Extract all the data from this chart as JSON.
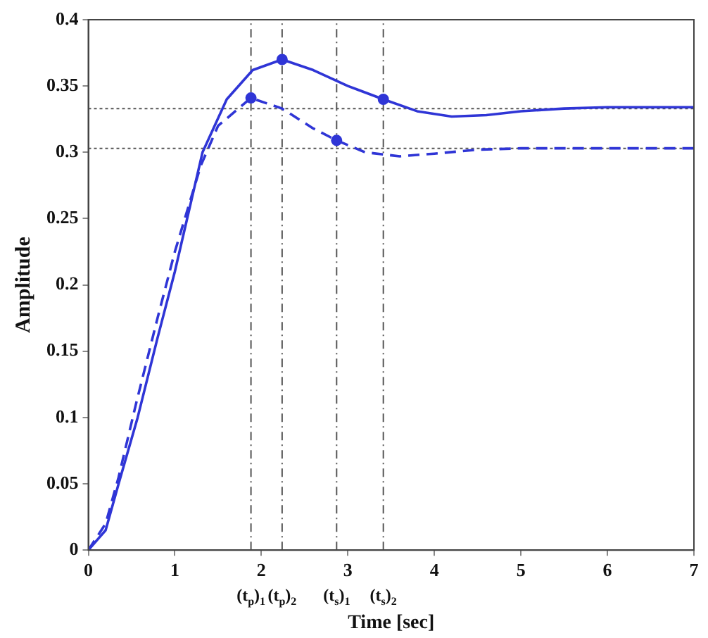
{
  "chart_data": {
    "type": "line",
    "xlabel": "Time [sec]",
    "ylabel": "Amplitude",
    "xlim": [
      0,
      7
    ],
    "xticks": [
      0,
      1,
      2,
      3,
      4,
      5,
      6,
      7
    ],
    "ylim": [
      0,
      0.4
    ],
    "yticks": [
      0,
      0.05,
      0.1,
      0.15,
      0.2,
      0.25,
      0.3,
      0.35,
      0.4
    ],
    "grid": false,
    "legend": false,
    "series": [
      {
        "color": "#2f35d6",
        "line_style": "solid",
        "marker": "none",
        "x": [
          0,
          0.2,
          0.35,
          0.57,
          0.8,
          1,
          1.32,
          1.6,
          1.9,
          2.24,
          2.6,
          3,
          3.41,
          3.8,
          4.2,
          4.6,
          5,
          5.5,
          6,
          7
        ],
        "values": [
          0,
          0.015,
          0.05,
          0.1,
          0.16,
          0.21,
          0.3,
          0.34,
          0.362,
          0.37,
          0.362,
          0.35,
          0.34,
          0.331,
          0.327,
          0.328,
          0.331,
          0.333,
          0.334,
          0.334
        ]
      },
      {
        "color": "#2f35d6",
        "line_style": "dashed",
        "marker": "none",
        "x": [
          0,
          0.2,
          0.35,
          0.55,
          0.8,
          1,
          1.3,
          1.5,
          1.88,
          2.24,
          2.6,
          2.87,
          3.2,
          3.6,
          4,
          4.5,
          5,
          6,
          7
        ],
        "values": [
          0,
          0.02,
          0.055,
          0.11,
          0.175,
          0.225,
          0.29,
          0.32,
          0.341,
          0.333,
          0.318,
          0.309,
          0.3,
          0.297,
          0.299,
          0.302,
          0.303,
          0.303,
          0.303
        ]
      },
      {
        "type": "scatter",
        "color": "#2f35d6",
        "marker": "circle",
        "x": [
          2.24,
          3.41,
          1.88,
          2.87
        ],
        "values": [
          0.37,
          0.34,
          0.341,
          0.309
        ]
      }
    ],
    "ref_lines": [
      {
        "axis": "y",
        "value": 0.333,
        "label": null,
        "color": "#555555",
        "line_style": "dotted"
      },
      {
        "axis": "y",
        "value": 0.303,
        "label": null,
        "color": "#555555",
        "line_style": "dotted"
      },
      {
        "axis": "x",
        "value": 1.88,
        "label": "(t$_{p}$)$_{1}$",
        "color": "#555555",
        "line_style": "dashed"
      },
      {
        "axis": "x",
        "value": 2.24,
        "label": "(t$_{p}$)$_{2}$",
        "color": "#555555",
        "line_style": "dashed"
      },
      {
        "axis": "x",
        "value": 2.87,
        "label": "(t$_{s}$)$_{1}$",
        "color": "#555555",
        "line_style": "dashed"
      },
      {
        "axis": "x",
        "value": 3.41,
        "label": "(t$_{s}$)$_{2}$",
        "color": "#555555",
        "line_style": "dashed"
      }
    ]
  }
}
